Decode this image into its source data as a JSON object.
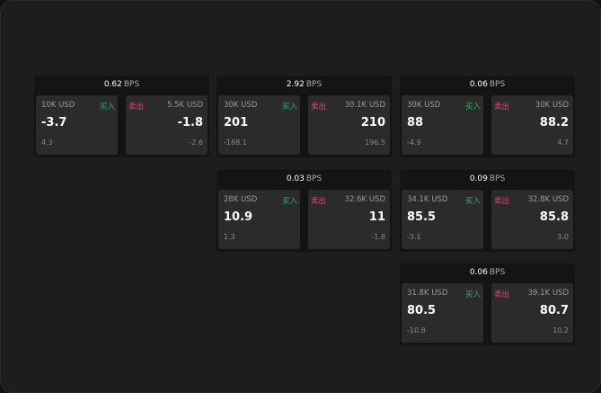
{
  "labels": {
    "unit": "BPS",
    "buy": "买入",
    "sell": "卖出"
  },
  "colors": {
    "buy": "#2fb36b",
    "sell": "#e0457b"
  },
  "cards": [
    {
      "spread": "0.62",
      "buy": {
        "size": "10K USD",
        "price": "-3.7",
        "change": "4.3"
      },
      "sell": {
        "size": "5.5K USD",
        "price": "-1.8",
        "change": "-2.6"
      }
    },
    {
      "spread": "2.92",
      "buy": {
        "size": "30K USD",
        "price": "201",
        "change": "-188.1"
      },
      "sell": {
        "size": "30.1K USD",
        "price": "210",
        "change": "196.5"
      }
    },
    {
      "spread": "0.06",
      "buy": {
        "size": "30K USD",
        "price": "88",
        "change": "-4.9"
      },
      "sell": {
        "size": "30K USD",
        "price": "88.2",
        "change": "4.7"
      }
    },
    {
      "spread": "0.03",
      "buy": {
        "size": "28K USD",
        "price": "10.9",
        "change": "1.3"
      },
      "sell": {
        "size": "32.6K USD",
        "price": "11",
        "change": "-1.8"
      }
    },
    {
      "spread": "0.09",
      "buy": {
        "size": "34.1K USD",
        "price": "85.5",
        "change": "-3.1"
      },
      "sell": {
        "size": "32.8K USD",
        "price": "85.8",
        "change": "3.0"
      }
    },
    {
      "spread": "0.06",
      "buy": {
        "size": "31.8K USD",
        "price": "80.5",
        "change": "-10.8"
      },
      "sell": {
        "size": "39.1K USD",
        "price": "80.7",
        "change": "10.2"
      }
    }
  ]
}
